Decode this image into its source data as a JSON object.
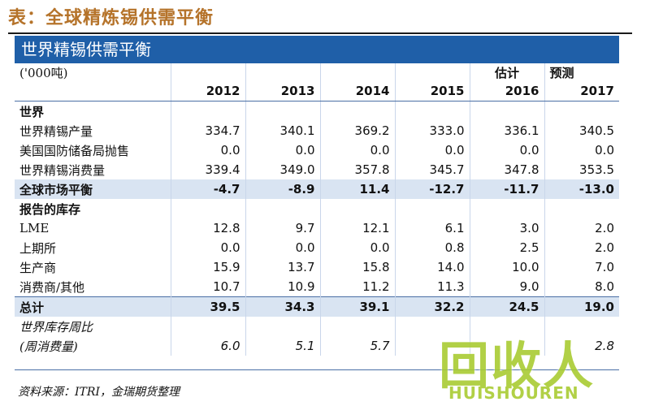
{
  "caption": "表：全球精炼锡供需平衡",
  "panel_title": "世界精锡供需平衡",
  "header": {
    "unit": "('000吨)",
    "estimate_label": "估计",
    "forecast_label": "预测",
    "years": [
      "2012",
      "2013",
      "2014",
      "2015",
      "2016",
      "2017"
    ]
  },
  "rows": [
    {
      "label": "世界",
      "values": [
        "",
        "",
        "",
        "",
        "",
        ""
      ],
      "style": "section"
    },
    {
      "label": "世界精锡产量",
      "values": [
        "334.7",
        "340.1",
        "369.2",
        "333.0",
        "336.1",
        "340.5"
      ],
      "style": "normal"
    },
    {
      "label": "美国国防储备局抛售",
      "values": [
        "0.0",
        "0.0",
        "0.0",
        "0.0",
        "0.0",
        "0.0"
      ],
      "style": "normal"
    },
    {
      "label": "世界精锡消费量",
      "values": [
        "339.4",
        "349.0",
        "357.8",
        "345.7",
        "347.8",
        "353.5"
      ],
      "style": "normal"
    },
    {
      "label": "全球市场平衡",
      "values": [
        "-4.7",
        "-8.9",
        "11.4",
        "-12.7",
        "-11.7",
        "-13.0"
      ],
      "style": "hl"
    },
    {
      "label": "报告的库存",
      "values": [
        "",
        "",
        "",
        "",
        "",
        ""
      ],
      "style": "section"
    },
    {
      "label": "LME",
      "values": [
        "12.8",
        "9.7",
        "12.1",
        "6.1",
        "3.0",
        "2.0"
      ],
      "style": "normal"
    },
    {
      "label": "上期所",
      "values": [
        "0.0",
        "0.0",
        "0.0",
        "0.8",
        "2.5",
        "2.0"
      ],
      "style": "normal"
    },
    {
      "label": "生产商",
      "values": [
        "15.9",
        "13.7",
        "15.8",
        "14.0",
        "10.0",
        "7.0"
      ],
      "style": "normal"
    },
    {
      "label": "消费商/其他",
      "values": [
        "10.7",
        "10.9",
        "11.2",
        "11.3",
        "9.0",
        "8.0"
      ],
      "style": "normal"
    },
    {
      "label": "总计",
      "values": [
        "39.5",
        "34.3",
        "39.1",
        "32.2",
        "24.5",
        "19.0"
      ],
      "style": "hl total"
    },
    {
      "label": "世界库存周比",
      "values": [
        "",
        "",
        "",
        "",
        "",
        ""
      ],
      "style": "it"
    },
    {
      "label": "(周消费量)",
      "values": [
        "6.0",
        "5.1",
        "5.7",
        "",
        "",
        "2.8"
      ],
      "style": "it"
    }
  ],
  "source": "资料来源：ITRI，金瑞期货整理",
  "watermark": {
    "big": "回收人",
    "small": "HUISHOUREN"
  }
}
